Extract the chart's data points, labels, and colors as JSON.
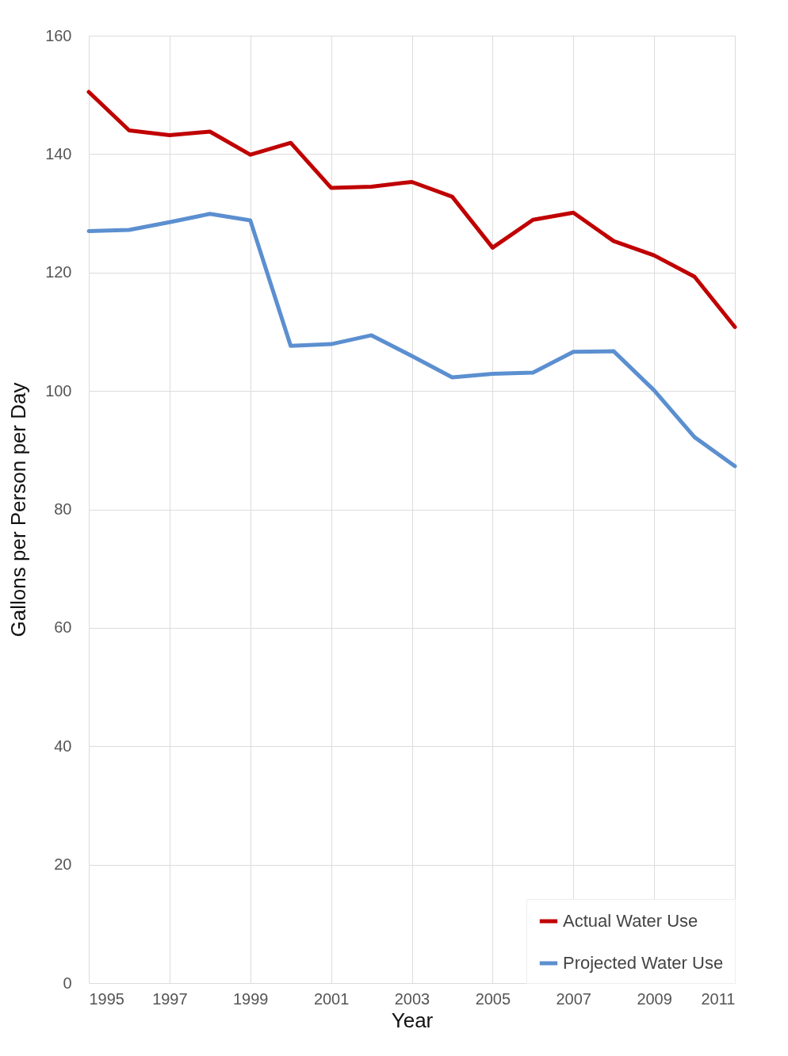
{
  "chart_data": {
    "type": "line",
    "xlabel": "Year",
    "ylabel": "Gallons per Person per Day",
    "x": [
      1995,
      1996,
      1997,
      1998,
      1999,
      2000,
      2001,
      2002,
      2003,
      2004,
      2005,
      2006,
      2007,
      2008,
      2009,
      2010,
      2011
    ],
    "series": [
      {
        "name": "Actual Water Use",
        "color": "#c00000",
        "values": [
          150.5,
          144,
          143.2,
          143.8,
          139.9,
          141.9,
          134.3,
          134.5,
          135.3,
          132.8,
          124.2,
          128.9,
          130.1,
          125.3,
          122.9,
          119.3,
          110.8
        ]
      },
      {
        "name": "Projected Water Use",
        "color": "#5b8fd0",
        "values": [
          127,
          127.2,
          128.5,
          129.9,
          128.8,
          107.6,
          107.9,
          109.4,
          105.9,
          102.3,
          102.9,
          103.1,
          106.6,
          106.7,
          100.1,
          92.2,
          87.3
        ]
      }
    ],
    "xlim": [
      1995,
      2011
    ],
    "xticks": [
      1995,
      1997,
      1999,
      2001,
      2003,
      2005,
      2007,
      2009,
      2011
    ],
    "ylim": [
      0,
      160
    ],
    "yticks": [
      0,
      20,
      40,
      60,
      80,
      100,
      120,
      140,
      160
    ],
    "grid": true,
    "legend": "bottom right",
    "marker": "none",
    "line_style": "solid"
  }
}
